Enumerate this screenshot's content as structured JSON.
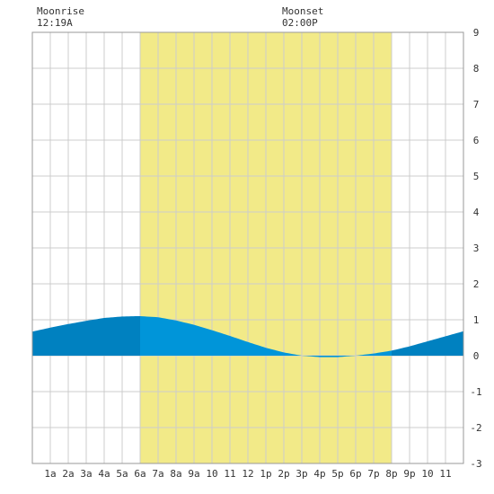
{
  "moonrise": {
    "label": "Moonrise",
    "time": "12:19A"
  },
  "moonset": {
    "label": "Moonset",
    "time": "02:00P"
  },
  "chart_data": {
    "type": "area",
    "x_unit": "hour of day",
    "xlim": [
      0,
      24
    ],
    "ylim": [
      -3,
      9
    ],
    "y_ticks": [
      -3,
      -2,
      -1,
      0,
      1,
      2,
      3,
      4,
      5,
      6,
      7,
      8,
      9
    ],
    "x_ticks": [
      {
        "hour": 1,
        "label": "1a"
      },
      {
        "hour": 2,
        "label": "2a"
      },
      {
        "hour": 3,
        "label": "3a"
      },
      {
        "hour": 4,
        "label": "4a"
      },
      {
        "hour": 5,
        "label": "5a"
      },
      {
        "hour": 6,
        "label": "6a"
      },
      {
        "hour": 7,
        "label": "7a"
      },
      {
        "hour": 8,
        "label": "8a"
      },
      {
        "hour": 9,
        "label": "9a"
      },
      {
        "hour": 10,
        "label": "10"
      },
      {
        "hour": 11,
        "label": "11"
      },
      {
        "hour": 12,
        "label": "12"
      },
      {
        "hour": 13,
        "label": "1p"
      },
      {
        "hour": 14,
        "label": "2p"
      },
      {
        "hour": 15,
        "label": "3p"
      },
      {
        "hour": 16,
        "label": "4p"
      },
      {
        "hour": 17,
        "label": "5p"
      },
      {
        "hour": 18,
        "label": "6p"
      },
      {
        "hour": 19,
        "label": "7p"
      },
      {
        "hour": 20,
        "label": "8p"
      },
      {
        "hour": 21,
        "label": "9p"
      },
      {
        "hour": 22,
        "label": "10"
      },
      {
        "hour": 23,
        "label": "11"
      }
    ],
    "daylight": {
      "start_hour": 6.0,
      "end_hour": 20.0
    },
    "series": [
      {
        "x": [
          0,
          1,
          2,
          3,
          4,
          5,
          5.75,
          6,
          7,
          8,
          9,
          10,
          11,
          12,
          13,
          14,
          15,
          16,
          17,
          18,
          19,
          20,
          21,
          22,
          23,
          24
        ],
        "values": [
          0.67,
          0.78,
          0.88,
          0.97,
          1.05,
          1.09,
          1.1,
          1.1,
          1.07,
          0.98,
          0.86,
          0.71,
          0.55,
          0.38,
          0.22,
          0.09,
          0.0,
          -0.04,
          -0.04,
          0.0,
          0.06,
          0.14,
          0.26,
          0.4,
          0.54,
          0.68
        ]
      }
    ],
    "colors": {
      "daylight": "#f2ea88",
      "tide_day": "#0095d9",
      "tide_night": "#0081c0",
      "grid": "#cccccc",
      "border": "#999999"
    }
  }
}
